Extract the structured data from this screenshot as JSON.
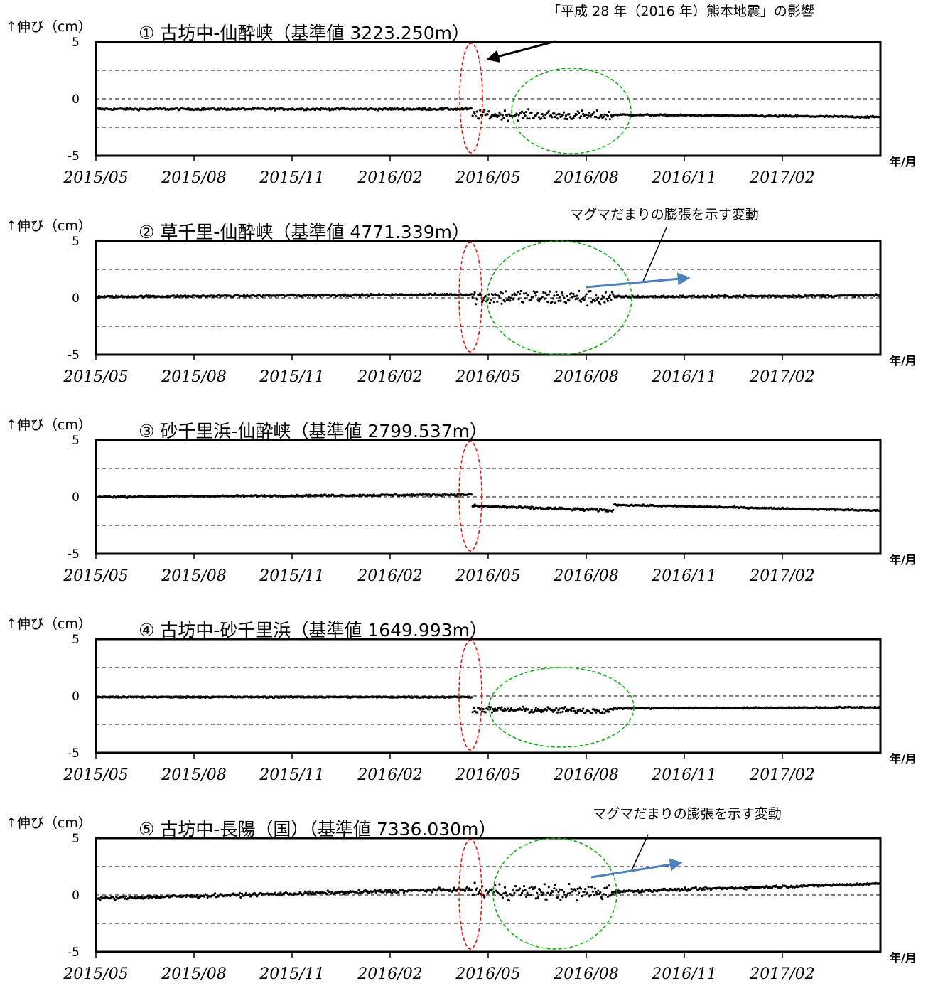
{
  "chart_data": [
    {
      "type": "scatter",
      "title": "① 古坊中-仙酔峡（基準値 3223.250m）",
      "ylabel": "↑伸び（cm）",
      "xunit": "年/月",
      "ylim": [
        -5,
        5
      ],
      "yticks": [
        "5",
        "0",
        "-5"
      ],
      "xticks": [
        "2015/05",
        "2015/08",
        "2015/11",
        "2016/02",
        "2016/05",
        "2016/08",
        "2016/11",
        "2017/02"
      ],
      "reference_lines": [
        2.5,
        0,
        -2.5
      ],
      "annotation": "「平成 28 年（2016 年）熊本地震」の影響",
      "series": [
        {
          "color": "#000000",
          "segments": [
            {
              "x": [
                "2015-05-01",
                "2016-04-15"
              ],
              "y": [
                -0.9,
                -0.9
              ],
              "noise": 0.15
            },
            {
              "x": [
                "2016-04-16",
                "2016-08-25"
              ],
              "y": [
                -1.4,
                -1.5
              ],
              "noise": 0.7
            },
            {
              "x": [
                "2016-08-26",
                "2017-05-01"
              ],
              "y": [
                -1.4,
                -1.6
              ],
              "noise": 0.12
            }
          ]
        }
      ]
    },
    {
      "type": "scatter",
      "title": "② 草千里-仙酔峡（基準値 4771.339m）",
      "ylabel": "↑伸び（cm）",
      "xunit": "年/月",
      "ylim": [
        -5,
        5
      ],
      "yticks": [
        "5",
        "0",
        "-5"
      ],
      "xticks": [
        "2015/05",
        "2015/08",
        "2015/11",
        "2016/02",
        "2016/05",
        "2016/08",
        "2016/11",
        "2017/02"
      ],
      "reference_lines": [
        2.5,
        0,
        -2.5
      ],
      "annotation": "マグマだまりの膨張を示す変動",
      "series": [
        {
          "color": "#000000",
          "segments": [
            {
              "x": [
                "2015-05-01",
                "2016-04-15"
              ],
              "y": [
                0.1,
                0.3
              ],
              "noise": 0.15
            },
            {
              "x": [
                "2016-04-16",
                "2016-08-25"
              ],
              "y": [
                0.1,
                0.0
              ],
              "noise": 1.2
            },
            {
              "x": [
                "2016-08-26",
                "2017-05-01"
              ],
              "y": [
                0.1,
                0.2
              ],
              "noise": 0.15
            }
          ]
        }
      ]
    },
    {
      "type": "scatter",
      "title": "③ 砂千里浜-仙酔峡（基準値 2799.537m）",
      "ylabel": "↑伸び（cm）",
      "xunit": "年/月",
      "ylim": [
        -5,
        5
      ],
      "yticks": [
        "5",
        "0",
        "-5"
      ],
      "xticks": [
        "2015/05",
        "2015/08",
        "2015/11",
        "2016/02",
        "2016/05",
        "2016/08",
        "2016/11",
        "2017/02"
      ],
      "reference_lines": [
        2.5,
        0,
        -2.5
      ],
      "series": [
        {
          "color": "#000000",
          "segments": [
            {
              "x": [
                "2015-05-01",
                "2016-04-15"
              ],
              "y": [
                0.0,
                0.2
              ],
              "noise": 0.12
            },
            {
              "x": [
                "2016-04-16",
                "2016-08-25"
              ],
              "y": [
                -0.8,
                -1.2
              ],
              "noise": 0.2
            },
            {
              "x": [
                "2016-08-26",
                "2017-05-01"
              ],
              "y": [
                -0.7,
                -1.2
              ],
              "noise": 0.1
            }
          ]
        }
      ]
    },
    {
      "type": "scatter",
      "title": "④ 古坊中-砂千里浜（基準値 1649.993m）",
      "ylabel": "↑伸び（cm）",
      "xunit": "年/月",
      "ylim": [
        -5,
        5
      ],
      "yticks": [
        "5",
        "0",
        "-5"
      ],
      "xticks": [
        "2015/05",
        "2015/08",
        "2015/11",
        "2016/02",
        "2016/05",
        "2016/08",
        "2016/11",
        "2017/02"
      ],
      "reference_lines": [
        2.5,
        0,
        -2.5
      ],
      "series": [
        {
          "color": "#000000",
          "segments": [
            {
              "x": [
                "2015-05-01",
                "2016-04-15"
              ],
              "y": [
                -0.1,
                -0.1
              ],
              "noise": 0.1
            },
            {
              "x": [
                "2016-04-16",
                "2016-08-25"
              ],
              "y": [
                -1.2,
                -1.3
              ],
              "noise": 0.45
            },
            {
              "x": [
                "2016-08-26",
                "2017-05-01"
              ],
              "y": [
                -1.1,
                -1.0
              ],
              "noise": 0.1
            }
          ]
        }
      ]
    },
    {
      "type": "scatter",
      "title": "⑤ 古坊中-長陽（国）（基準値 7336.030m）",
      "ylabel": "↑伸び（cm）",
      "xunit": "年/月",
      "ylim": [
        -5,
        5
      ],
      "yticks": [
        "5",
        "0",
        "-5"
      ],
      "xticks": [
        "2015/05",
        "2015/08",
        "2015/11",
        "2016/02",
        "2016/05",
        "2016/08",
        "2016/11",
        "2017/02"
      ],
      "reference_lines": [
        2.5,
        0,
        -2.5
      ],
      "annotation": "マグマだまりの膨張を示す変動",
      "series": [
        {
          "color": "#000000",
          "segments": [
            {
              "x": [
                "2015-05-01",
                "2016-04-15"
              ],
              "y": [
                -0.3,
                0.5
              ],
              "noise": 0.25
            },
            {
              "x": [
                "2016-04-16",
                "2016-08-25"
              ],
              "y": [
                0.3,
                0.2
              ],
              "noise": 1.2
            },
            {
              "x": [
                "2016-08-26",
                "2017-05-01"
              ],
              "y": [
                0.3,
                1.0
              ],
              "noise": 0.2
            }
          ]
        }
      ]
    }
  ],
  "colors": {
    "quake_marker": "#ff0000",
    "disturbance_marker": "#00b000",
    "trend_arrow": "#4f81bd"
  }
}
